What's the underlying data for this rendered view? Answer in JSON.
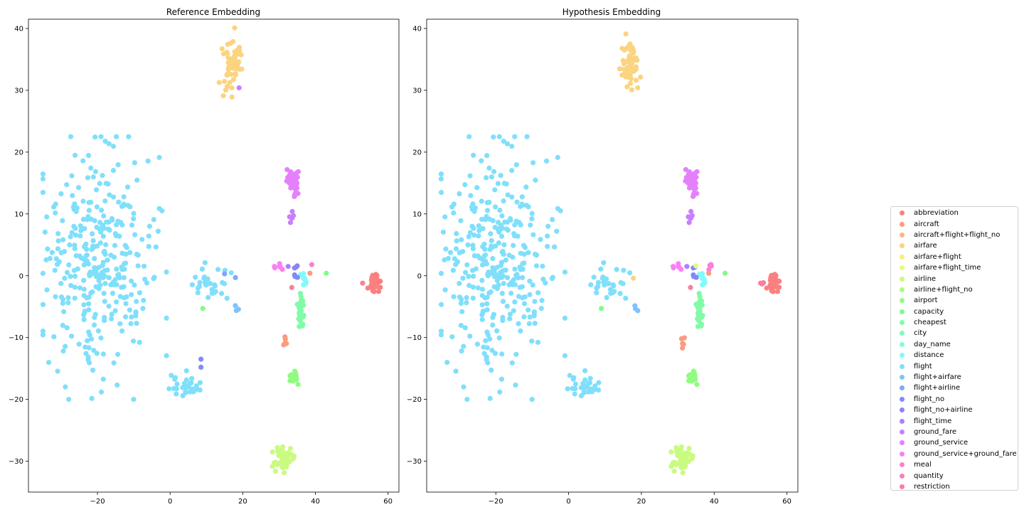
{
  "figure": {
    "panels": [
      {
        "title": "Reference Embedding"
      },
      {
        "title": "Hypothesis Embedding"
      }
    ]
  },
  "chart_data": [
    {
      "type": "scatter",
      "title": "Reference Embedding",
      "xlabel": "",
      "ylabel": "",
      "xlim": [
        -39,
        63
      ],
      "ylim": [
        -35,
        41.5
      ],
      "xticks": [
        -20,
        0,
        20,
        40,
        60
      ],
      "yticks": [
        40,
        30,
        20,
        10,
        0,
        -10,
        -20,
        -30
      ],
      "grid": false,
      "clusters": [
        {
          "label": "flight",
          "cx": -20,
          "cy": 2,
          "sx": 8,
          "sy": 9,
          "n": 330
        },
        {
          "label": "flight",
          "cx": 4,
          "cy": -18,
          "sx": 2,
          "sy": 1,
          "n": 30
        },
        {
          "label": "flight",
          "cx": 11,
          "cy": -1,
          "sx": 2.5,
          "sy": 1.5,
          "n": 30
        },
        {
          "label": "airfare",
          "cx": 17,
          "cy": 34,
          "sx": 1.2,
          "sy": 2.2,
          "n": 60
        },
        {
          "label": "ground_service",
          "cx": 34,
          "cy": 15.5,
          "sx": 0.8,
          "sy": 1,
          "n": 35
        },
        {
          "label": "ground_fare",
          "cx": 33.5,
          "cy": 9,
          "sx": 0.3,
          "sy": 0.7,
          "n": 5
        },
        {
          "label": "ground_service",
          "cx": 34.5,
          "cy": 13,
          "sx": 0.3,
          "sy": 0.3,
          "n": 4
        },
        {
          "label": "abbreviation",
          "cx": 56.5,
          "cy": -1.3,
          "sx": 0.7,
          "sy": 0.9,
          "n": 45
        },
        {
          "label": "cheapest",
          "cx": 36,
          "cy": -6,
          "sx": 0.5,
          "sy": 1.2,
          "n": 30
        },
        {
          "label": "airport",
          "cx": 34,
          "cy": -16.5,
          "sx": 0.6,
          "sy": 0.5,
          "n": 25
        },
        {
          "label": "airline",
          "cx": 31,
          "cy": -29.5,
          "sx": 1.2,
          "sy": 1,
          "n": 60
        },
        {
          "label": "distance",
          "cx": 37,
          "cy": -0.8,
          "sx": 0.5,
          "sy": 0.5,
          "n": 10
        },
        {
          "label": "flight_no",
          "cx": 34.8,
          "cy": 0,
          "sx": 0.3,
          "sy": 0.6,
          "n": 6
        },
        {
          "label": "ground_service+ground_fare",
          "cx": 30,
          "cy": 1.5,
          "sx": 0.7,
          "sy": 0.2,
          "n": 6
        },
        {
          "label": "aircraft",
          "cx": 31.5,
          "cy": -10.8,
          "sx": 0.3,
          "sy": 0.5,
          "n": 5
        },
        {
          "label": "flight+airfare",
          "cx": 18.5,
          "cy": -5.2,
          "sx": 0.3,
          "sy": 0.3,
          "n": 3
        }
      ],
      "points": [
        {
          "label": "ground_fare",
          "x": 19,
          "y": 30.4
        },
        {
          "label": "airfare",
          "x": 17,
          "y": 30.4
        },
        {
          "label": "capacity",
          "x": 43,
          "y": 0.4
        },
        {
          "label": "restriction",
          "x": 53,
          "y": -1.2
        },
        {
          "label": "aircraft",
          "x": 38.5,
          "y": 0.4
        },
        {
          "label": "restriction",
          "x": 33.5,
          "y": -1.9
        },
        {
          "label": "meal",
          "x": 39,
          "y": 1.8
        },
        {
          "label": "flight+airline",
          "x": 15,
          "y": 0.3
        },
        {
          "label": "flight+airline",
          "x": 18,
          "y": -0.3
        },
        {
          "label": "flight_no",
          "x": 8.5,
          "y": -13.5
        },
        {
          "label": "flight_no",
          "x": 8.5,
          "y": -14.8
        },
        {
          "label": "capacity",
          "x": 9,
          "y": -5.3
        },
        {
          "label": "flight_time",
          "x": 32.5,
          "y": 1.5
        },
        {
          "label": "flight_no+airline",
          "x": 35,
          "y": 1.6
        }
      ]
    },
    {
      "type": "scatter",
      "title": "Hypothesis Embedding",
      "xlabel": "",
      "ylabel": "",
      "xlim": [
        -39,
        63
      ],
      "ylim": [
        -35,
        41.5
      ],
      "xticks": [
        -20,
        0,
        20,
        40,
        60
      ],
      "yticks": [
        40,
        30,
        20,
        10,
        0,
        -10,
        -20,
        -30
      ],
      "grid": false,
      "clusters": [
        {
          "label": "flight",
          "cx": -20,
          "cy": 2,
          "sx": 8,
          "sy": 9,
          "n": 330
        },
        {
          "label": "flight",
          "cx": 4,
          "cy": -18,
          "sx": 2,
          "sy": 1,
          "n": 30
        },
        {
          "label": "flight",
          "cx": 11,
          "cy": -1,
          "sx": 2.5,
          "sy": 1.5,
          "n": 30
        },
        {
          "label": "airfare",
          "cx": 17,
          "cy": 34,
          "sx": 1.2,
          "sy": 2.2,
          "n": 62
        },
        {
          "label": "ground_service",
          "cx": 34,
          "cy": 15.5,
          "sx": 0.8,
          "sy": 1,
          "n": 35
        },
        {
          "label": "ground_fare",
          "cx": 33.5,
          "cy": 9,
          "sx": 0.3,
          "sy": 0.7,
          "n": 5
        },
        {
          "label": "ground_service",
          "cx": 34.5,
          "cy": 13,
          "sx": 0.3,
          "sy": 0.3,
          "n": 4
        },
        {
          "label": "abbreviation",
          "cx": 56.5,
          "cy": -1.3,
          "sx": 0.7,
          "sy": 0.9,
          "n": 45
        },
        {
          "label": "cheapest",
          "cx": 36,
          "cy": -6,
          "sx": 0.5,
          "sy": 1.2,
          "n": 30
        },
        {
          "label": "airport",
          "cx": 34,
          "cy": -16.5,
          "sx": 0.6,
          "sy": 0.5,
          "n": 25
        },
        {
          "label": "airline",
          "cx": 31,
          "cy": -29.5,
          "sx": 1.2,
          "sy": 1,
          "n": 60
        },
        {
          "label": "distance",
          "cx": 37,
          "cy": -0.8,
          "sx": 0.5,
          "sy": 0.5,
          "n": 10
        },
        {
          "label": "flight_no",
          "cx": 34.8,
          "cy": 0,
          "sx": 0.3,
          "sy": 0.6,
          "n": 6
        },
        {
          "label": "ground_service+ground_fare",
          "cx": 30,
          "cy": 1.5,
          "sx": 0.7,
          "sy": 0.2,
          "n": 6
        },
        {
          "label": "meal",
          "cx": 38.8,
          "cy": 1.5,
          "sx": 0.3,
          "sy": 0.3,
          "n": 4
        },
        {
          "label": "aircraft",
          "cx": 31.5,
          "cy": -10.8,
          "sx": 0.3,
          "sy": 0.5,
          "n": 5
        },
        {
          "label": "flight+airfare",
          "cx": 18.5,
          "cy": -5.2,
          "sx": 0.3,
          "sy": 0.3,
          "n": 3
        },
        {
          "label": "restriction",
          "cx": 53,
          "cy": -1.2,
          "sx": 0.4,
          "sy": 0.1,
          "n": 3
        }
      ],
      "points": [
        {
          "label": "airfare",
          "x": 19,
          "y": 30.4
        },
        {
          "label": "airfare",
          "x": 17.8,
          "y": -0.4
        },
        {
          "label": "capacity",
          "x": 43,
          "y": 0.4
        },
        {
          "label": "restriction",
          "x": 33.5,
          "y": -1.9
        },
        {
          "label": "aircraft",
          "x": 38.5,
          "y": 0.4
        },
        {
          "label": "airfare+flight_time",
          "x": 35,
          "y": 1.6
        },
        {
          "label": "flight_time",
          "x": 32.5,
          "y": 1.5
        },
        {
          "label": "capacity",
          "x": 9,
          "y": -5.3
        }
      ]
    }
  ],
  "legend": {
    "placement": "right",
    "entries": [
      {
        "label": "abbreviation",
        "color": "#fb8080"
      },
      {
        "label": "aircraft",
        "color": "#fb9b80"
      },
      {
        "label": "aircraft+flight+flight_no",
        "color": "#fbb880"
      },
      {
        "label": "airfare",
        "color": "#fbd480"
      },
      {
        "label": "airfare+flight",
        "color": "#f6f080"
      },
      {
        "label": "airfare+flight_time",
        "color": "#e3fb80"
      },
      {
        "label": "airline",
        "color": "#c9fb80"
      },
      {
        "label": "airline+flight_no",
        "color": "#acfb80"
      },
      {
        "label": "airport",
        "color": "#90fb80"
      },
      {
        "label": "capacity",
        "color": "#80fb8a"
      },
      {
        "label": "cheapest",
        "color": "#80fba6"
      },
      {
        "label": "city",
        "color": "#80fbc3"
      },
      {
        "label": "day_name",
        "color": "#80fbdf"
      },
      {
        "label": "distance",
        "color": "#80fbfb"
      },
      {
        "label": "flight",
        "color": "#80dffb"
      },
      {
        "label": "flight+airfare",
        "color": "#80c3fb"
      },
      {
        "label": "flight+airline",
        "color": "#80a6fb"
      },
      {
        "label": "flight_no",
        "color": "#808afb"
      },
      {
        "label": "flight_no+airline",
        "color": "#9080fb"
      },
      {
        "label": "flight_time",
        "color": "#ac80fb"
      },
      {
        "label": "ground_fare",
        "color": "#c980fb"
      },
      {
        "label": "ground_service",
        "color": "#e580fb"
      },
      {
        "label": "ground_service+ground_fare",
        "color": "#fb80f6"
      },
      {
        "label": "meal",
        "color": "#fb80d4"
      },
      {
        "label": "quantity",
        "color": "#fb80b8"
      },
      {
        "label": "restriction",
        "color": "#fb809b"
      }
    ]
  }
}
